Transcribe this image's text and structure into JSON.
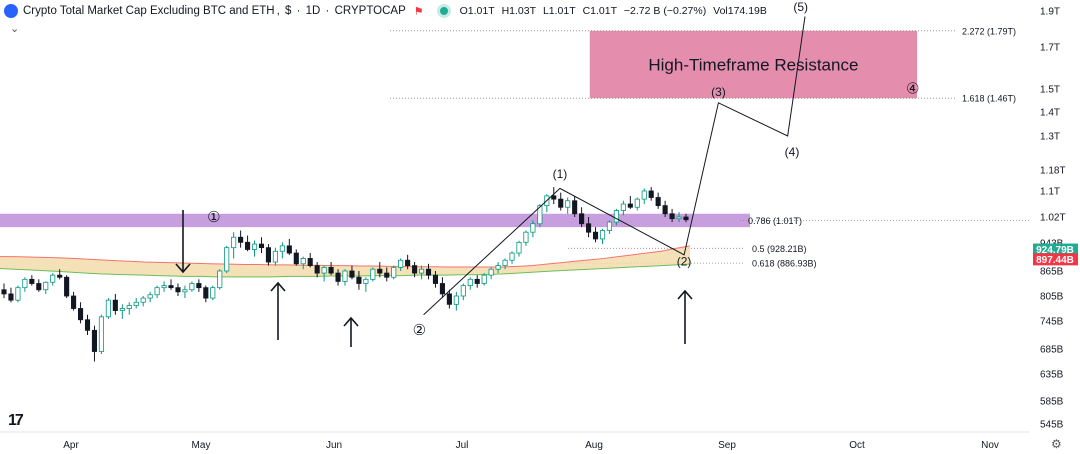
{
  "header": {
    "title": "Crypto Total Market Cap Excluding BTC and ETH",
    "currency": "$",
    "interval": "1D",
    "source": "CRYPTOCAP",
    "flag_icon": "flag-icon",
    "open": "O1.01T",
    "high": "H1.03T",
    "low": "L1.01T",
    "close": "C1.01T",
    "change": "−2.72 B (−0.27%)",
    "volume": "Vol174.19B"
  },
  "colors": {
    "up": "#089981",
    "down": "#131722",
    "resistance_zone": "#e0799d",
    "support_band": "#a35fc8",
    "cloud_fill": "#f2d9a6",
    "cloud_upper": "#f4736c",
    "cloud_lower": "#6bbf59",
    "current_price_bg": "#22ab94",
    "ma_price_bg": "#f23645"
  },
  "chart_data": {
    "type": "candlestick",
    "title": "Crypto Total Market Cap Excluding BTC and ETH",
    "x_ticks": [
      "Apr",
      "May",
      "Jun",
      "Jul",
      "Aug",
      "Sep",
      "Oct",
      "Nov"
    ],
    "y_ticks": [
      "1.9T",
      "1.7T",
      "1.5T",
      "1.4T",
      "1.3T",
      "1.18T",
      "1.1T",
      "1.02T",
      "943B",
      "865B",
      "805B",
      "745B",
      "685B",
      "635B",
      "585B",
      "545B"
    ],
    "y_tick_values": [
      1900,
      1700,
      1500,
      1400,
      1300,
      1180,
      1100,
      1020,
      943,
      865,
      805,
      745,
      685,
      635,
      585,
      545
    ],
    "price_badges": [
      {
        "label": "924.79B",
        "value": 924.79,
        "color": "#22ab94"
      },
      {
        "label": "897.44B",
        "value": 897.44,
        "color": "#f23645"
      }
    ],
    "fib_levels": [
      {
        "label": "2.272 (1.79T)",
        "value": 1790
      },
      {
        "label": "1.618 (1.46T)",
        "value": 1460
      },
      {
        "label": "0.786 (1.01T)",
        "value": 1010
      },
      {
        "label": "0.5 (928.21B)",
        "value": 928.21
      },
      {
        "label": "0.618 (886.93B)",
        "value": 886.93
      }
    ],
    "resistance_zone": {
      "label": "High-Timeframe Resistance",
      "low": 1460,
      "high": 1790,
      "start": "Jul 31",
      "end": "Oct 15"
    },
    "support_zone": {
      "low": 990,
      "high": 1030
    },
    "wave_labels": [
      {
        "label": "(1)",
        "date": "Jul 24",
        "value": 1150
      },
      {
        "label": "(2)",
        "date": "Aug 22",
        "value": 880
      },
      {
        "label": "(3)",
        "date": "Aug 30",
        "value": 1470
      },
      {
        "label": "(4)",
        "date": "Sep 16",
        "value": 1230
      },
      {
        "label": "(5)",
        "date": "Sep 18",
        "value": 1900
      },
      {
        "label": "③",
        "date": "Sep 18",
        "value": 1960
      },
      {
        "label": "④",
        "date": "Oct 14",
        "value": 1480
      },
      {
        "label": "①",
        "date": "May 4",
        "value": 1005
      },
      {
        "label": "②",
        "date": "Jun 21",
        "value": 715
      }
    ],
    "projection_path": [
      {
        "date": "Jun 22",
        "value": 760
      },
      {
        "date": "Jul 24",
        "value": 1110
      },
      {
        "date": "Aug 22",
        "value": 910
      },
      {
        "date": "Aug 30",
        "value": 1440
      },
      {
        "date": "Sep 15",
        "value": 1300
      },
      {
        "date": "Sep 19",
        "value": 1870
      }
    ],
    "ohlc": [
      [
        820,
        835,
        800,
        810
      ],
      [
        810,
        825,
        790,
        795
      ],
      [
        795,
        830,
        790,
        825
      ],
      [
        825,
        850,
        815,
        845
      ],
      [
        845,
        855,
        830,
        835
      ],
      [
        835,
        845,
        815,
        820
      ],
      [
        820,
        840,
        810,
        838
      ],
      [
        838,
        860,
        830,
        855
      ],
      [
        855,
        870,
        845,
        850
      ],
      [
        850,
        855,
        800,
        805
      ],
      [
        805,
        815,
        770,
        775
      ],
      [
        775,
        790,
        740,
        748
      ],
      [
        748,
        760,
        715,
        725
      ],
      [
        725,
        735,
        660,
        680
      ],
      [
        680,
        760,
        675,
        755
      ],
      [
        755,
        800,
        750,
        795
      ],
      [
        795,
        810,
        760,
        770
      ],
      [
        770,
        785,
        750,
        775
      ],
      [
        775,
        790,
        760,
        782
      ],
      [
        782,
        800,
        775,
        790
      ],
      [
        790,
        805,
        780,
        800
      ],
      [
        800,
        815,
        790,
        808
      ],
      [
        808,
        830,
        800,
        825
      ],
      [
        825,
        840,
        815,
        830
      ],
      [
        830,
        845,
        820,
        825
      ],
      [
        825,
        835,
        805,
        815
      ],
      [
        815,
        830,
        800,
        820
      ],
      [
        820,
        840,
        815,
        835
      ],
      [
        835,
        845,
        815,
        825
      ],
      [
        825,
        830,
        790,
        800
      ],
      [
        800,
        830,
        795,
        825
      ],
      [
        825,
        870,
        820,
        865
      ],
      [
        865,
        935,
        860,
        930
      ],
      [
        930,
        975,
        900,
        960
      ],
      [
        960,
        980,
        930,
        945
      ],
      [
        945,
        965,
        920,
        925
      ],
      [
        925,
        950,
        905,
        940
      ],
      [
        940,
        960,
        915,
        930
      ],
      [
        930,
        940,
        880,
        890
      ],
      [
        890,
        930,
        880,
        920
      ],
      [
        920,
        945,
        900,
        935
      ],
      [
        935,
        955,
        910,
        915
      ],
      [
        915,
        925,
        880,
        885
      ],
      [
        885,
        905,
        870,
        900
      ],
      [
        900,
        915,
        875,
        880
      ],
      [
        880,
        890,
        850,
        860
      ],
      [
        860,
        880,
        840,
        875
      ],
      [
        875,
        890,
        855,
        860
      ],
      [
        860,
        870,
        830,
        840
      ],
      [
        840,
        870,
        830,
        865
      ],
      [
        865,
        880,
        845,
        850
      ],
      [
        850,
        865,
        820,
        835
      ],
      [
        835,
        850,
        815,
        845
      ],
      [
        845,
        875,
        840,
        870
      ],
      [
        870,
        890,
        850,
        860
      ],
      [
        860,
        875,
        840,
        850
      ],
      [
        850,
        880,
        845,
        875
      ],
      [
        875,
        900,
        865,
        895
      ],
      [
        895,
        910,
        870,
        880
      ],
      [
        880,
        890,
        850,
        860
      ],
      [
        860,
        880,
        845,
        870
      ],
      [
        870,
        885,
        845,
        855
      ],
      [
        855,
        865,
        825,
        835
      ],
      [
        835,
        850,
        800,
        810
      ],
      [
        810,
        820,
        775,
        785
      ],
      [
        785,
        815,
        770,
        805
      ],
      [
        805,
        835,
        795,
        830
      ],
      [
        830,
        850,
        820,
        845
      ],
      [
        845,
        855,
        825,
        835
      ],
      [
        835,
        860,
        830,
        855
      ],
      [
        855,
        875,
        845,
        870
      ],
      [
        870,
        890,
        860,
        880
      ],
      [
        880,
        900,
        870,
        895
      ],
      [
        895,
        920,
        885,
        915
      ],
      [
        915,
        950,
        905,
        945
      ],
      [
        945,
        980,
        935,
        975
      ],
      [
        975,
        1010,
        960,
        1000
      ],
      [
        1000,
        1060,
        990,
        1055
      ],
      [
        1055,
        1090,
        1035,
        1085
      ],
      [
        1085,
        1115,
        1060,
        1075
      ],
      [
        1075,
        1095,
        1040,
        1050
      ],
      [
        1050,
        1080,
        1030,
        1070
      ],
      [
        1070,
        1085,
        1020,
        1030
      ],
      [
        1030,
        1050,
        990,
        1000
      ],
      [
        1000,
        1020,
        960,
        975
      ],
      [
        975,
        990,
        945,
        955
      ],
      [
        955,
        985,
        940,
        980
      ],
      [
        980,
        1010,
        970,
        1005
      ],
      [
        1005,
        1045,
        995,
        1040
      ],
      [
        1040,
        1070,
        1025,
        1060
      ],
      [
        1060,
        1085,
        1045,
        1050
      ],
      [
        1050,
        1080,
        1040,
        1075
      ],
      [
        1075,
        1110,
        1060,
        1100
      ],
      [
        1100,
        1115,
        1070,
        1080
      ],
      [
        1080,
        1095,
        1045,
        1055
      ],
      [
        1055,
        1070,
        1020,
        1030
      ],
      [
        1030,
        1045,
        1005,
        1015
      ],
      [
        1015,
        1035,
        1005,
        1020
      ],
      [
        1020,
        1030,
        1005,
        1012
      ]
    ],
    "cloud": {
      "upper": [
        905,
        905,
        904,
        903,
        902,
        900,
        898,
        896,
        894,
        892,
        890,
        889,
        888,
        887,
        886,
        885,
        884,
        883,
        883,
        882,
        882,
        881,
        881,
        880,
        880,
        879,
        879,
        878,
        878,
        877,
        877,
        876,
        876,
        876,
        876,
        876,
        878,
        880,
        884,
        888,
        892,
        896,
        900,
        905,
        910,
        915,
        920,
        928,
        935
      ],
      "lower": [
        872,
        870,
        868,
        866,
        864,
        862,
        860,
        858,
        857,
        856,
        855,
        854,
        853,
        852,
        852,
        851,
        851,
        851,
        851,
        851,
        852,
        852,
        852,
        853,
        853,
        853,
        854,
        854,
        854,
        855,
        855,
        855,
        856,
        856,
        857,
        858,
        860,
        862,
        864,
        866,
        868,
        870,
        872,
        874,
        876,
        878,
        880,
        882,
        884
      ]
    }
  }
}
